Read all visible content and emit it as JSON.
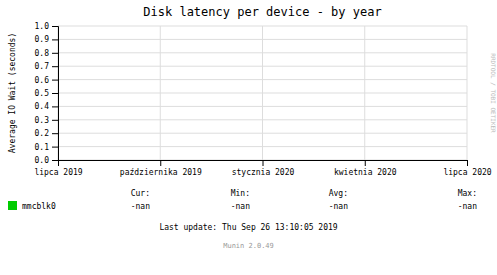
{
  "chart_data": {
    "type": "line",
    "title": "Disk latency per device - by year",
    "y_label": "Average IO Wait (seconds)",
    "categories": [
      "lipca 2019",
      "października 2019",
      "stycznia 2020",
      "kwietnia 2020",
      "lipca 2020"
    ],
    "series": [
      {
        "name": "mmcblk0",
        "color": "#00cc00",
        "values": [
          null,
          null,
          null,
          null,
          null
        ]
      }
    ],
    "ylim": [
      0.0,
      1.0
    ],
    "yticks": [
      {
        "value": 0.0,
        "label": "0.0"
      },
      0.1,
      0.2,
      0.3,
      0.4,
      0.5,
      0.6,
      0.7,
      0.8,
      0.9,
      {
        "value": 1.0,
        "label": "1.0"
      }
    ],
    "grid": true,
    "legend": "bottom",
    "annotations": [
      "Cur:",
      "-nan",
      "Min:",
      "-nan",
      "Avg:",
      "-nan",
      "Max:",
      "-nan",
      "Last update: Thu Sep 26 13:10:05 2019",
      "Munin 2.0.49",
      "RRDTOOL / TOBI OETIKER"
    ]
  }
}
